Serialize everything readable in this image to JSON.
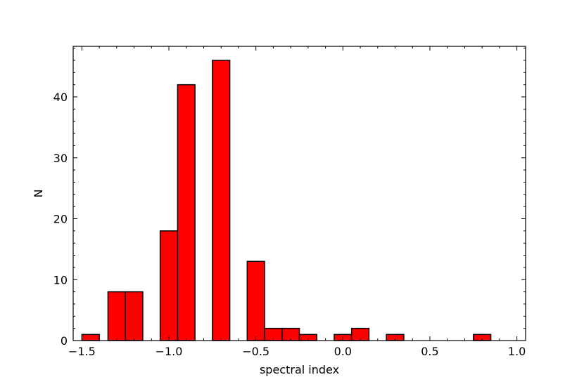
{
  "chart_data": {
    "type": "bar",
    "xlabel": "spectral index",
    "ylabel": "N",
    "xlim": [
      -1.55,
      1.05
    ],
    "ylim": [
      0,
      48.3
    ],
    "bar_color": "#ff0000",
    "edge_color": "#000000",
    "bin_width": 0.1,
    "bins": [
      {
        "x": -1.45,
        "value": 1
      },
      {
        "x": -1.3,
        "value": 8
      },
      {
        "x": -1.2,
        "value": 8
      },
      {
        "x": -1.0,
        "value": 18
      },
      {
        "x": -0.9,
        "value": 42
      },
      {
        "x": -0.7,
        "value": 46
      },
      {
        "x": -0.5,
        "value": 13
      },
      {
        "x": -0.4,
        "value": 2
      },
      {
        "x": -0.3,
        "value": 2
      },
      {
        "x": -0.2,
        "value": 1
      },
      {
        "x": 0.0,
        "value": 1
      },
      {
        "x": 0.1,
        "value": 2
      },
      {
        "x": 0.3,
        "value": 1
      },
      {
        "x": 0.8,
        "value": 1
      }
    ],
    "x_ticks": [
      {
        "value": -1.5,
        "label": "−1.5"
      },
      {
        "value": -1.0,
        "label": "−1.0"
      },
      {
        "value": -0.5,
        "label": "−0.5"
      },
      {
        "value": 0.0,
        "label": "0.0"
      },
      {
        "value": 0.5,
        "label": "0.5"
      },
      {
        "value": 1.0,
        "label": "1.0"
      }
    ],
    "y_ticks": [
      {
        "value": 0,
        "label": "0"
      },
      {
        "value": 10,
        "label": "10"
      },
      {
        "value": 20,
        "label": "20"
      },
      {
        "value": 30,
        "label": "30"
      },
      {
        "value": 40,
        "label": "40"
      }
    ],
    "grid": false,
    "ticks_direction": "in"
  }
}
